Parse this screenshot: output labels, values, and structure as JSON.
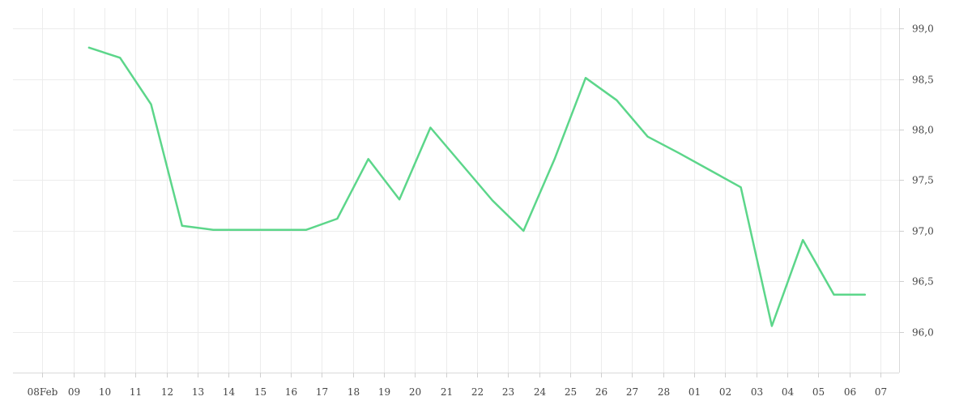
{
  "chart_data": {
    "type": "line",
    "title": "",
    "xlabel": "",
    "ylabel": "",
    "grid": true,
    "y_axis_side": "right",
    "line_color": "#5cd68a",
    "x_ticks": [
      "08Feb",
      "09",
      "10",
      "11",
      "12",
      "13",
      "14",
      "15",
      "16",
      "17",
      "18",
      "19",
      "20",
      "21",
      "22",
      "23",
      "24",
      "25",
      "26",
      "27",
      "28",
      "01",
      "02",
      "03",
      "04",
      "05",
      "06",
      "07"
    ],
    "y_ticks": [
      "96,0",
      "96,5",
      "97,0",
      "97,5",
      "98,0",
      "98,5",
      "99,0"
    ],
    "y_tick_values": [
      96.0,
      96.5,
      97.0,
      97.5,
      98.0,
      98.5,
      99.0
    ],
    "ylim": [
      95.6,
      99.2
    ],
    "xlim": [
      -0.95,
      27.6
    ],
    "series": [
      {
        "x": [
          1.5,
          2.5,
          3.5,
          4.5,
          5.5,
          6.5,
          7.5,
          8.5,
          9.5,
          10.5,
          11.5,
          12.5,
          13.5,
          14.5,
          15.5,
          16.5,
          17.5,
          18.5,
          19.5,
          20.5,
          21.5,
          22.5,
          23.5,
          24.5,
          25.5,
          26.5
        ],
        "values": [
          98.81,
          98.71,
          98.25,
          97.05,
          97.01,
          97.01,
          97.01,
          97.01,
          97.12,
          97.71,
          97.31,
          98.02,
          97.66,
          97.3,
          97.0,
          97.71,
          98.51,
          98.29,
          97.93,
          97.77,
          97.6,
          97.43,
          96.06,
          96.91,
          96.37,
          96.37
        ]
      }
    ]
  }
}
